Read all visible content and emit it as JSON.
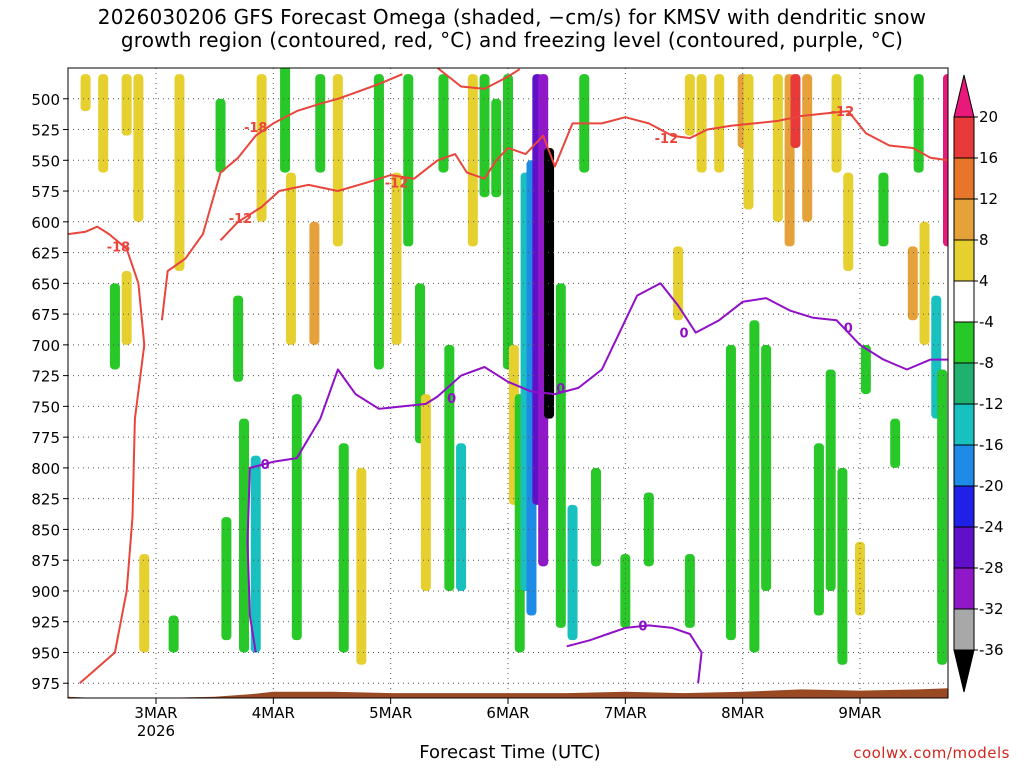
{
  "chart_data": {
    "type": "heatmap",
    "title_line1": "2026030206 GFS Forecast Omega (shaded, −cm/s) for KMSV with dendritic snow",
    "title_line2": "growth region (contoured, red, °C) and freezing level (contoured, purple, °C)",
    "xlabel": "Forecast Time (UTC)",
    "credit": "coolwx.com/models",
    "x_axis": {
      "unit": "day",
      "range": [
        2.25,
        9.75
      ],
      "ticks": [
        {
          "value": 3,
          "label": "3MAR",
          "sublabel": "2026"
        },
        {
          "value": 4,
          "label": "4MAR"
        },
        {
          "value": 5,
          "label": "5MAR"
        },
        {
          "value": 6,
          "label": "6MAR"
        },
        {
          "value": 7,
          "label": "7MAR"
        },
        {
          "value": 8,
          "label": "8MAR"
        },
        {
          "value": 9,
          "label": "9MAR"
        }
      ]
    },
    "y_axis": {
      "unit": "hPa",
      "range": [
        475,
        987
      ],
      "ticks": [
        500,
        525,
        550,
        575,
        600,
        625,
        650,
        675,
        700,
        725,
        750,
        775,
        800,
        825,
        850,
        875,
        900,
        925,
        950,
        975
      ]
    },
    "colorbar": {
      "labels": [
        "20",
        "16",
        "12",
        "8",
        "4",
        "-4",
        "-8",
        "-12",
        "-16",
        "-20",
        "-24",
        "-28",
        "-32",
        "-36"
      ],
      "colors": [
        "#e8197a",
        "#e83a3a",
        "#e8762a",
        "#e6a23a",
        "#e6d030",
        "#ffffff",
        "#28c828",
        "#20b070",
        "#18c0c0",
        "#1e8ce6",
        "#2020e6",
        "#6010c8",
        "#9018c8",
        "#a8a8a8",
        "#000000"
      ]
    },
    "omega_cells": [
      {
        "t": 2.4,
        "p1": 480,
        "p2": 510,
        "v": 5
      },
      {
        "t": 2.55,
        "p1": 480,
        "p2": 560,
        "v": 5
      },
      {
        "t": 2.75,
        "p1": 480,
        "p2": 530,
        "v": 5
      },
      {
        "t": 2.75,
        "p1": 640,
        "p2": 700,
        "v": 5
      },
      {
        "t": 2.65,
        "p1": 650,
        "p2": 720,
        "v": -6
      },
      {
        "t": 2.85,
        "p1": 480,
        "p2": 600,
        "v": 5
      },
      {
        "t": 2.9,
        "p1": 870,
        "p2": 950,
        "v": 5
      },
      {
        "t": 3.15,
        "p1": 920,
        "p2": 950,
        "v": -6
      },
      {
        "t": 3.2,
        "p1": 480,
        "p2": 640,
        "v": 5
      },
      {
        "t": 3.55,
        "p1": 500,
        "p2": 560,
        "v": -6
      },
      {
        "t": 3.6,
        "p1": 840,
        "p2": 940,
        "v": -6
      },
      {
        "t": 3.7,
        "p1": 660,
        "p2": 730,
        "v": -6
      },
      {
        "t": 3.75,
        "p1": 760,
        "p2": 950,
        "v": -6
      },
      {
        "t": 3.85,
        "p1": 790,
        "p2": 950,
        "v": -12
      },
      {
        "t": 3.9,
        "p1": 480,
        "p2": 600,
        "v": 5
      },
      {
        "t": 4.1,
        "p1": 470,
        "p2": 560,
        "v": -6
      },
      {
        "t": 4.15,
        "p1": 560,
        "p2": 700,
        "v": 5
      },
      {
        "t": 4.2,
        "p1": 740,
        "p2": 940,
        "v": -6
      },
      {
        "t": 4.35,
        "p1": 600,
        "p2": 700,
        "v": 8
      },
      {
        "t": 4.4,
        "p1": 480,
        "p2": 560,
        "v": -6
      },
      {
        "t": 4.55,
        "p1": 480,
        "p2": 620,
        "v": 5
      },
      {
        "t": 4.6,
        "p1": 780,
        "p2": 950,
        "v": -6
      },
      {
        "t": 4.75,
        "p1": 800,
        "p2": 960,
        "v": 5
      },
      {
        "t": 4.9,
        "p1": 480,
        "p2": 720,
        "v": -6
      },
      {
        "t": 5.05,
        "p1": 560,
        "p2": 700,
        "v": 5
      },
      {
        "t": 5.15,
        "p1": 480,
        "p2": 620,
        "v": -6
      },
      {
        "t": 5.25,
        "p1": 650,
        "p2": 780,
        "v": -6
      },
      {
        "t": 5.3,
        "p1": 740,
        "p2": 900,
        "v": 5
      },
      {
        "t": 5.45,
        "p1": 480,
        "p2": 560,
        "v": -6
      },
      {
        "t": 5.5,
        "p1": 700,
        "p2": 900,
        "v": -6
      },
      {
        "t": 5.6,
        "p1": 780,
        "p2": 900,
        "v": -12
      },
      {
        "t": 5.7,
        "p1": 480,
        "p2": 620,
        "v": 5
      },
      {
        "t": 5.8,
        "p1": 480,
        "p2": 580,
        "v": -6
      },
      {
        "t": 5.9,
        "p1": 500,
        "p2": 580,
        "v": -6
      },
      {
        "t": 6.0,
        "p1": 480,
        "p2": 720,
        "v": -6
      },
      {
        "t": 6.05,
        "p1": 700,
        "p2": 830,
        "v": 5
      },
      {
        "t": 6.1,
        "p1": 740,
        "p2": 950,
        "v": -6
      },
      {
        "t": 6.15,
        "p1": 560,
        "p2": 900,
        "v": -12
      },
      {
        "t": 6.2,
        "p1": 550,
        "p2": 920,
        "v": -16
      },
      {
        "t": 6.25,
        "p1": 480,
        "p2": 830,
        "v": -24
      },
      {
        "t": 6.3,
        "p1": 480,
        "p2": 880,
        "v": -28
      },
      {
        "t": 6.35,
        "p1": 540,
        "p2": 760,
        "v": -40
      },
      {
        "t": 6.45,
        "p1": 650,
        "p2": 930,
        "v": -6
      },
      {
        "t": 6.55,
        "p1": 830,
        "p2": 940,
        "v": -12
      },
      {
        "t": 6.65,
        "p1": 480,
        "p2": 560,
        "v": -6
      },
      {
        "t": 6.75,
        "p1": 800,
        "p2": 880,
        "v": -6
      },
      {
        "t": 7.0,
        "p1": 870,
        "p2": 930,
        "v": -6
      },
      {
        "t": 7.2,
        "p1": 820,
        "p2": 880,
        "v": -6
      },
      {
        "t": 7.45,
        "p1": 620,
        "p2": 680,
        "v": 5
      },
      {
        "t": 7.55,
        "p1": 480,
        "p2": 530,
        "v": 5
      },
      {
        "t": 7.55,
        "p1": 870,
        "p2": 930,
        "v": -6
      },
      {
        "t": 7.65,
        "p1": 480,
        "p2": 560,
        "v": 5
      },
      {
        "t": 7.8,
        "p1": 480,
        "p2": 560,
        "v": 5
      },
      {
        "t": 7.9,
        "p1": 700,
        "p2": 940,
        "v": -6
      },
      {
        "t": 8.0,
        "p1": 480,
        "p2": 540,
        "v": 8
      },
      {
        "t": 8.05,
        "p1": 480,
        "p2": 590,
        "v": 5
      },
      {
        "t": 8.1,
        "p1": 680,
        "p2": 950,
        "v": -6
      },
      {
        "t": 8.2,
        "p1": 700,
        "p2": 900,
        "v": -6
      },
      {
        "t": 8.3,
        "p1": 480,
        "p2": 600,
        "v": 5
      },
      {
        "t": 8.4,
        "p1": 480,
        "p2": 620,
        "v": 8
      },
      {
        "t": 8.45,
        "p1": 480,
        "p2": 540,
        "v": 16
      },
      {
        "t": 8.55,
        "p1": 480,
        "p2": 600,
        "v": 8
      },
      {
        "t": 8.65,
        "p1": 780,
        "p2": 920,
        "v": -6
      },
      {
        "t": 8.75,
        "p1": 720,
        "p2": 900,
        "v": -6
      },
      {
        "t": 8.8,
        "p1": 480,
        "p2": 560,
        "v": 5
      },
      {
        "t": 8.85,
        "p1": 800,
        "p2": 960,
        "v": -6
      },
      {
        "t": 8.9,
        "p1": 560,
        "p2": 640,
        "v": 5
      },
      {
        "t": 9.0,
        "p1": 860,
        "p2": 920,
        "v": 5
      },
      {
        "t": 9.05,
        "p1": 700,
        "p2": 740,
        "v": -6
      },
      {
        "t": 9.2,
        "p1": 560,
        "p2": 620,
        "v": -6
      },
      {
        "t": 9.3,
        "p1": 760,
        "p2": 800,
        "v": -6
      },
      {
        "t": 9.45,
        "p1": 620,
        "p2": 680,
        "v": 8
      },
      {
        "t": 9.5,
        "p1": 480,
        "p2": 560,
        "v": -6
      },
      {
        "t": 9.55,
        "p1": 600,
        "p2": 700,
        "v": 5
      },
      {
        "t": 9.65,
        "p1": 660,
        "p2": 760,
        "v": -12
      },
      {
        "t": 9.75,
        "p1": 480,
        "p2": 620,
        "v": 20
      },
      {
        "t": 9.7,
        "p1": 720,
        "p2": 960,
        "v": -6
      }
    ],
    "dgz_contours": [
      {
        "label": "-18",
        "points": [
          [
            2.25,
            610
          ],
          [
            2.4,
            608
          ],
          [
            2.5,
            604
          ],
          [
            2.6,
            610
          ],
          [
            2.75,
            622
          ],
          [
            2.85,
            650
          ],
          [
            2.9,
            700
          ],
          [
            2.82,
            760
          ],
          [
            2.8,
            840
          ],
          [
            2.75,
            900
          ],
          [
            2.65,
            950
          ],
          [
            2.35,
            975
          ]
        ],
        "label_positions": [
          [
            2.68,
            620
          ]
        ]
      },
      {
        "label": "-18 ",
        "points": [
          [
            3.05,
            680
          ],
          [
            3.1,
            640
          ],
          [
            3.25,
            630
          ],
          [
            3.4,
            610
          ],
          [
            3.55,
            560
          ],
          [
            3.7,
            548
          ],
          [
            3.85,
            530
          ],
          [
            4.0,
            520
          ],
          [
            4.2,
            510
          ],
          [
            4.4,
            504
          ],
          [
            4.55,
            500
          ],
          [
            4.7,
            495
          ],
          [
            4.9,
            488
          ],
          [
            5.1,
            480
          ]
        ],
        "label_positions": [
          [
            3.85,
            523
          ]
        ]
      },
      {
        "label": "-12",
        "points": [
          [
            3.55,
            615
          ],
          [
            3.7,
            600
          ],
          [
            3.9,
            588
          ],
          [
            4.05,
            575
          ],
          [
            4.3,
            570
          ],
          [
            4.55,
            575
          ],
          [
            4.8,
            568
          ],
          [
            5.0,
            562
          ],
          [
            5.2,
            565
          ],
          [
            5.4,
            550
          ],
          [
            5.55,
            545
          ],
          [
            5.65,
            560
          ],
          [
            5.8,
            565
          ],
          [
            5.9,
            550
          ],
          [
            6.0,
            540
          ],
          [
            6.15,
            545
          ],
          [
            6.3,
            530
          ],
          [
            6.4,
            555
          ],
          [
            6.55,
            520
          ],
          [
            6.8,
            520
          ],
          [
            7.0,
            515
          ],
          [
            7.2,
            520
          ],
          [
            7.4,
            530
          ],
          [
            7.55,
            532
          ],
          [
            7.7,
            525
          ],
          [
            7.9,
            522
          ],
          [
            8.1,
            520
          ],
          [
            8.3,
            518
          ],
          [
            8.5,
            514
          ],
          [
            8.7,
            512
          ],
          [
            8.9,
            510
          ],
          [
            9.05,
            528
          ],
          [
            9.25,
            538
          ],
          [
            9.45,
            540
          ],
          [
            9.6,
            548
          ],
          [
            9.75,
            550
          ]
        ],
        "label_positions": [
          [
            3.72,
            597
          ],
          [
            5.05,
            568
          ],
          [
            7.35,
            532
          ],
          [
            8.85,
            510
          ]
        ]
      },
      {
        "label": "-12 ",
        "points": [
          [
            5.4,
            475
          ],
          [
            5.6,
            490
          ],
          [
            5.8,
            492
          ],
          [
            6.0,
            482
          ],
          [
            6.1,
            476
          ]
        ],
        "label_positions": []
      }
    ],
    "freezing_contours": [
      {
        "label": "0",
        "points": [
          [
            3.85,
            950
          ],
          [
            3.8,
            920
          ],
          [
            3.78,
            860
          ],
          [
            3.8,
            800
          ],
          [
            4.0,
            795
          ],
          [
            4.2,
            792
          ],
          [
            4.4,
            760
          ],
          [
            4.55,
            720
          ],
          [
            4.7,
            740
          ],
          [
            4.9,
            752
          ],
          [
            5.1,
            750
          ],
          [
            5.3,
            748
          ],
          [
            5.4,
            742
          ],
          [
            5.6,
            725
          ],
          [
            5.8,
            718
          ],
          [
            6.0,
            730
          ],
          [
            6.2,
            738
          ],
          [
            6.4,
            740
          ],
          [
            6.6,
            735
          ],
          [
            6.8,
            720
          ],
          [
            6.95,
            690
          ],
          [
            7.1,
            660
          ],
          [
            7.3,
            650
          ],
          [
            7.45,
            668
          ],
          [
            7.6,
            690
          ],
          [
            7.8,
            680
          ],
          [
            8.0,
            665
          ],
          [
            8.2,
            662
          ],
          [
            8.4,
            672
          ],
          [
            8.6,
            678
          ],
          [
            8.8,
            680
          ],
          [
            9.0,
            700
          ],
          [
            9.2,
            712
          ],
          [
            9.4,
            720
          ],
          [
            9.6,
            712
          ],
          [
            9.75,
            712
          ]
        ],
        "label_positions": [
          [
            3.93,
            797
          ],
          [
            5.52,
            743
          ],
          [
            6.45,
            735
          ],
          [
            7.5,
            690
          ],
          [
            8.9,
            686
          ]
        ]
      },
      {
        "label": "0 ",
        "points": [
          [
            6.5,
            945
          ],
          [
            6.7,
            940
          ],
          [
            6.85,
            935
          ],
          [
            7.0,
            930
          ],
          [
            7.2,
            928
          ],
          [
            7.4,
            930
          ],
          [
            7.55,
            935
          ],
          [
            7.65,
            950
          ],
          [
            7.62,
            975
          ]
        ],
        "label_positions": [
          [
            7.15,
            928
          ]
        ]
      }
    ]
  }
}
